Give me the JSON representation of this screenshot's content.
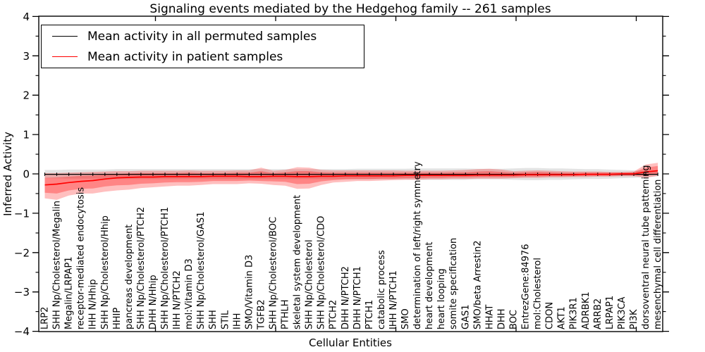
{
  "title": "Signaling events mediated by the Hedgehog family -- 261 samples",
  "axes": {
    "ylabel": "Inferred Activity",
    "xlabel": "Cellular Entities",
    "ytick_labels": [
      "4",
      "3",
      "2",
      "1",
      "0",
      "−1",
      "−2",
      "−3",
      "−4"
    ],
    "ytick_values": [
      4,
      3,
      2,
      1,
      0,
      -1,
      -2,
      -3,
      -4
    ]
  },
  "legend_position": "upper left",
  "chart_data": {
    "type": "line",
    "title": "Signaling events mediated by the Hedgehog family -- 261 samples",
    "xlabel": "Cellular Entities",
    "ylabel": "Inferred Activity",
    "ylim": [
      -4,
      4
    ],
    "grid": false,
    "n_samples": 261,
    "categories": [
      "LRP2",
      "SHH Np/Cholesterol/Megalin",
      "Megalin/LRPAP1",
      "receptor-mediated endocytosis",
      "IHH N/Hhip",
      "SHH Np/Cholesterol/Hhip",
      "HHIP",
      "pancreas development",
      "SHH Np/Cholesterol/PTCH2",
      "DHH N/Hhip",
      "SHH Np/Cholesterol/PTCH1",
      "IHH N/PTCH2",
      "mol:Vitamin D3",
      "SHH Np/Cholesterol/GAS1",
      "SHH",
      "STIL",
      "IHH",
      "SMO/Vitamin D3",
      "TGFB2",
      "SHH Np/Cholesterol/BOC",
      "PTHLH",
      "skeletal system development",
      "SHH Np/Cholesterol",
      "SHH Np/Cholesterol/CDO",
      "PTCH2",
      "DHH N/PTCH2",
      "DHH N/PTCH1",
      "PTCH1",
      "catabolic process",
      "IHH N/PTCH1",
      "SMO",
      "determination of left/right symmetry",
      "heart development",
      "heart looping",
      "somite specification",
      "GAS1",
      "SMO/beta Arrestin2",
      "HHAT",
      "DHH",
      "BOC",
      "EntrezGene:84976",
      "mol:Cholesterol",
      "CDON",
      "AKT1",
      "PIK3R1",
      "ADRBK1",
      "ARRB2",
      "LRPAP1",
      "PIK3CA",
      "PI3K",
      "dorsoventral neural tube patterning",
      "mesenchymal cell differentiation"
    ],
    "series": [
      {
        "name": "Mean activity in all permuted samples",
        "color": "#000000",
        "values": [
          -0.01,
          -0.01,
          -0.01,
          -0.01,
          -0.01,
          -0.01,
          -0.01,
          -0.01,
          -0.01,
          -0.01,
          -0.01,
          -0.01,
          -0.01,
          -0.01,
          -0.01,
          -0.01,
          -0.01,
          -0.01,
          -0.01,
          -0.01,
          -0.01,
          -0.01,
          -0.01,
          -0.01,
          -0.01,
          -0.01,
          -0.01,
          -0.01,
          -0.01,
          -0.01,
          -0.01,
          -0.01,
          -0.01,
          -0.01,
          -0.01,
          -0.01,
          -0.01,
          -0.01,
          -0.01,
          -0.01,
          -0.01,
          -0.01,
          -0.01,
          -0.01,
          -0.01,
          -0.01,
          -0.01,
          -0.01,
          -0.01,
          -0.01,
          -0.01,
          -0.01
        ]
      },
      {
        "name": "Mean activity in patient samples",
        "color": "#ff0000",
        "values": [
          -0.28,
          -0.26,
          -0.22,
          -0.19,
          -0.17,
          -0.13,
          -0.1,
          -0.09,
          -0.08,
          -0.08,
          -0.07,
          -0.07,
          -0.07,
          -0.07,
          -0.06,
          -0.06,
          -0.06,
          -0.07,
          -0.07,
          -0.06,
          -0.06,
          -0.07,
          -0.07,
          -0.06,
          -0.06,
          -0.05,
          -0.05,
          -0.05,
          -0.05,
          -0.05,
          -0.04,
          -0.04,
          -0.04,
          -0.04,
          -0.04,
          -0.04,
          -0.03,
          -0.03,
          -0.03,
          -0.03,
          -0.02,
          -0.02,
          -0.02,
          -0.02,
          -0.02,
          -0.01,
          -0.01,
          -0.01,
          0.0,
          0.0,
          0.05,
          0.08
        ]
      }
    ],
    "bands": [
      {
        "name": "permuted-samples-range",
        "color": "#999999",
        "opacity": 0.28,
        "upper": [
          0.1,
          0.1,
          0.11,
          0.11,
          0.11,
          0.11,
          0.12,
          0.12,
          0.12,
          0.12,
          0.12,
          0.12,
          0.12,
          0.12,
          0.12,
          0.12,
          0.12,
          0.12,
          0.12,
          0.12,
          0.12,
          0.12,
          0.12,
          0.12,
          0.12,
          0.12,
          0.13,
          0.13,
          0.13,
          0.13,
          0.13,
          0.14,
          0.14,
          0.14,
          0.14,
          0.14,
          0.13,
          0.13,
          0.13,
          0.14,
          0.15,
          0.15,
          0.14,
          0.14,
          0.13,
          0.12,
          0.12,
          0.11,
          0.1,
          0.09,
          0.07,
          0.05
        ],
        "lower": [
          -0.11,
          -0.11,
          -0.12,
          -0.12,
          -0.12,
          -0.12,
          -0.13,
          -0.13,
          -0.13,
          -0.13,
          -0.13,
          -0.13,
          -0.13,
          -0.13,
          -0.13,
          -0.13,
          -0.13,
          -0.13,
          -0.13,
          -0.13,
          -0.13,
          -0.13,
          -0.13,
          -0.13,
          -0.13,
          -0.13,
          -0.14,
          -0.14,
          -0.14,
          -0.14,
          -0.14,
          -0.15,
          -0.15,
          -0.15,
          -0.15,
          -0.15,
          -0.14,
          -0.14,
          -0.14,
          -0.15,
          -0.16,
          -0.16,
          -0.15,
          -0.15,
          -0.14,
          -0.13,
          -0.13,
          -0.12,
          -0.11,
          -0.1,
          -0.08,
          -0.06
        ]
      },
      {
        "name": "patient-samples-range-outer",
        "color": "#ff0000",
        "opacity": 0.25,
        "upper": [
          0.02,
          0.02,
          0.03,
          0.04,
          0.05,
          0.06,
          0.07,
          0.07,
          0.08,
          0.08,
          0.08,
          0.08,
          0.09,
          0.08,
          0.08,
          0.08,
          0.09,
          0.09,
          0.16,
          0.08,
          0.1,
          0.17,
          0.16,
          0.1,
          0.09,
          0.09,
          0.09,
          0.09,
          0.09,
          0.09,
          0.08,
          0.08,
          0.08,
          0.08,
          0.09,
          0.1,
          0.12,
          0.13,
          0.11,
          0.07,
          0.08,
          0.09,
          0.08,
          0.07,
          0.06,
          0.06,
          0.06,
          0.05,
          0.05,
          0.06,
          0.24,
          0.28
        ],
        "lower": [
          -0.62,
          -0.66,
          -0.55,
          -0.5,
          -0.5,
          -0.45,
          -0.42,
          -0.4,
          -0.36,
          -0.34,
          -0.32,
          -0.3,
          -0.3,
          -0.28,
          -0.26,
          -0.26,
          -0.26,
          -0.24,
          -0.25,
          -0.28,
          -0.3,
          -0.38,
          -0.37,
          -0.28,
          -0.22,
          -0.2,
          -0.18,
          -0.18,
          -0.17,
          -0.16,
          -0.15,
          -0.15,
          -0.14,
          -0.14,
          -0.13,
          -0.13,
          -0.12,
          -0.12,
          -0.12,
          -0.11,
          -0.1,
          -0.1,
          -0.09,
          -0.09,
          -0.08,
          -0.08,
          -0.07,
          -0.07,
          -0.06,
          -0.06,
          -0.1,
          -0.05
        ]
      },
      {
        "name": "patient-samples-range-inner",
        "color": "#ff0000",
        "opacity": 0.3,
        "upper": [
          -0.1,
          -0.09,
          -0.07,
          -0.05,
          -0.04,
          -0.02,
          0.0,
          0.01,
          0.02,
          0.02,
          0.02,
          0.02,
          0.03,
          0.02,
          0.02,
          0.02,
          0.03,
          0.03,
          0.07,
          0.02,
          0.04,
          0.07,
          0.07,
          0.04,
          0.03,
          0.03,
          0.03,
          0.03,
          0.03,
          0.03,
          0.03,
          0.03,
          0.03,
          0.03,
          0.04,
          0.04,
          0.06,
          0.07,
          0.05,
          0.03,
          0.04,
          0.05,
          0.04,
          0.03,
          0.03,
          0.03,
          0.03,
          0.03,
          0.03,
          0.04,
          0.16,
          0.2
        ],
        "lower": [
          -0.48,
          -0.5,
          -0.42,
          -0.38,
          -0.37,
          -0.32,
          -0.29,
          -0.28,
          -0.25,
          -0.24,
          -0.22,
          -0.21,
          -0.21,
          -0.2,
          -0.18,
          -0.18,
          -0.18,
          -0.17,
          -0.18,
          -0.19,
          -0.2,
          -0.26,
          -0.25,
          -0.19,
          -0.16,
          -0.14,
          -0.13,
          -0.13,
          -0.12,
          -0.12,
          -0.11,
          -0.11,
          -0.1,
          -0.1,
          -0.09,
          -0.09,
          -0.08,
          -0.08,
          -0.08,
          -0.08,
          -0.07,
          -0.07,
          -0.06,
          -0.06,
          -0.06,
          -0.05,
          -0.05,
          -0.05,
          -0.04,
          -0.04,
          -0.04,
          0.0
        ]
      }
    ]
  }
}
